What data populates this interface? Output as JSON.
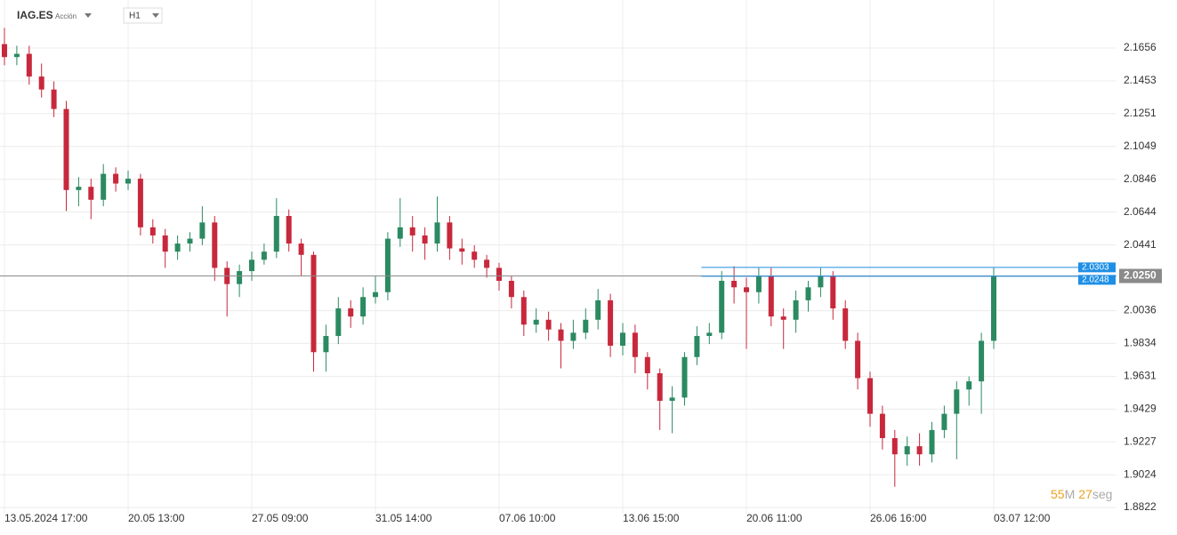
{
  "header": {
    "symbol": "IAG.ES",
    "kind": "Acción",
    "timeframe": "H1"
  },
  "chart_data": {
    "type": "candlestick",
    "categories": [
      "13.05.2024 17:00",
      null,
      null,
      null,
      null,
      null,
      null,
      null,
      null,
      null,
      "20.05 13:00",
      null,
      null,
      null,
      null,
      null,
      null,
      null,
      null,
      null,
      "27.05 09:00",
      null,
      null,
      null,
      null,
      null,
      null,
      null,
      null,
      null,
      "31.05 14:00",
      null,
      null,
      null,
      null,
      null,
      null,
      null,
      null,
      null,
      "07.06 10:00",
      null,
      null,
      null,
      null,
      null,
      null,
      null,
      null,
      null,
      "13.06 15:00",
      null,
      null,
      null,
      null,
      null,
      null,
      null,
      null,
      null,
      "20.06 11:00",
      null,
      null,
      null,
      null,
      null,
      null,
      null,
      null,
      null,
      "26.06 16:00",
      null,
      null,
      null,
      null,
      null,
      null,
      null,
      null,
      null,
      "03.07 12:00"
    ],
    "open": [
      2.168,
      2.16,
      2.162,
      2.148,
      2.14,
      2.128,
      2.078,
      2.08,
      2.072,
      2.088,
      2.082,
      2.085,
      2.055,
      2.05,
      2.04,
      2.045,
      2.048,
      2.058,
      2.03,
      2.02,
      2.028,
      2.035,
      2.04,
      2.062,
      2.045,
      2.038,
      1.978,
      1.988,
      2.005,
      2.0,
      2.012,
      2.015,
      2.048,
      2.055,
      2.05,
      2.045,
      2.058,
      2.042,
      2.04,
      2.035,
      2.03,
      2.022,
      2.012,
      1.995,
      1.998,
      1.992,
      1.985,
      1.99,
      1.998,
      2.01,
      1.982,
      1.99,
      1.975,
      1.965,
      1.948,
      1.95,
      1.975,
      1.988,
      1.99,
      2.022,
      2.018,
      2.015,
      2.025,
      2.0,
      1.998,
      2.01,
      2.018,
      2.025,
      2.005,
      1.985,
      1.962,
      1.94,
      1.925,
      1.915,
      1.92,
      1.915,
      1.93,
      1.94,
      1.955,
      1.96,
      1.985
    ],
    "high": [
      2.178,
      2.167,
      2.167,
      2.156,
      2.145,
      2.133,
      2.086,
      2.085,
      2.094,
      2.092,
      2.09,
      2.088,
      2.06,
      2.054,
      2.05,
      2.052,
      2.068,
      2.062,
      2.034,
      2.032,
      2.04,
      2.045,
      2.073,
      2.066,
      2.048,
      2.04,
      1.995,
      2.012,
      2.01,
      2.018,
      2.025,
      2.052,
      2.073,
      2.062,
      2.055,
      2.074,
      2.062,
      2.048,
      2.044,
      2.038,
      2.033,
      2.025,
      2.016,
      2.005,
      2.003,
      1.996,
      1.998,
      2.005,
      2.017,
      2.014,
      1.996,
      1.995,
      1.978,
      1.968,
      1.957,
      1.978,
      1.994,
      1.996,
      2.028,
      2.031,
      2.024,
      2.03,
      2.03,
      2.005,
      2.016,
      2.022,
      2.03,
      2.028,
      2.01,
      1.99,
      1.966,
      1.945,
      1.93,
      1.926,
      1.928,
      1.935,
      1.945,
      1.96,
      1.963,
      1.99,
      2.03
    ],
    "low": [
      2.155,
      2.155,
      2.143,
      2.135,
      2.123,
      2.065,
      2.068,
      2.06,
      2.068,
      2.077,
      2.078,
      2.05,
      2.045,
      2.03,
      2.035,
      2.04,
      2.044,
      2.022,
      2.0,
      2.012,
      2.022,
      2.032,
      2.036,
      2.04,
      2.025,
      1.966,
      1.966,
      1.983,
      1.993,
      1.995,
      2.008,
      2.01,
      2.043,
      2.04,
      2.035,
      2.04,
      2.035,
      2.032,
      2.03,
      2.024,
      2.016,
      2.005,
      1.988,
      1.99,
      1.985,
      1.968,
      1.98,
      1.986,
      1.992,
      1.975,
      1.976,
      1.965,
      1.955,
      1.93,
      1.928,
      1.945,
      1.97,
      1.983,
      1.986,
      2.008,
      1.98,
      2.008,
      1.994,
      1.98,
      1.99,
      2.003,
      2.012,
      1.998,
      1.98,
      1.955,
      1.932,
      1.918,
      1.895,
      1.908,
      1.908,
      1.91,
      1.925,
      1.912,
      1.945,
      1.94,
      1.98
    ],
    "close": [
      2.16,
      2.162,
      2.148,
      2.14,
      2.128,
      2.078,
      2.08,
      2.072,
      2.088,
      2.082,
      2.085,
      2.055,
      2.05,
      2.04,
      2.045,
      2.048,
      2.058,
      2.03,
      2.02,
      2.028,
      2.035,
      2.04,
      2.062,
      2.045,
      2.038,
      1.978,
      1.988,
      2.005,
      2.0,
      2.012,
      2.015,
      2.048,
      2.055,
      2.05,
      2.045,
      2.058,
      2.042,
      2.04,
      2.035,
      2.03,
      2.022,
      2.012,
      1.995,
      1.998,
      1.992,
      1.985,
      1.99,
      1.998,
      2.01,
      1.982,
      1.99,
      1.975,
      1.965,
      1.948,
      1.95,
      1.975,
      1.988,
      1.99,
      2.022,
      2.018,
      2.015,
      2.025,
      2.0,
      1.998,
      2.01,
      2.018,
      2.025,
      2.005,
      1.985,
      1.962,
      1.94,
      1.925,
      1.915,
      1.92,
      1.915,
      1.93,
      1.94,
      1.955,
      1.96,
      1.985,
      2.025
    ],
    "up_color": "#2b8a61",
    "down_color": "#c8283c",
    "ylim": [
      1.8784,
      2.1952
    ],
    "yticks": [
      1.8822,
      1.9024,
      1.9227,
      1.9429,
      1.9631,
      1.9834,
      2.0036,
      2.0441,
      2.0644,
      2.0846,
      2.1049,
      2.1251,
      2.1453,
      2.1656
    ],
    "grid": true,
    "levels": [
      {
        "value": 2.0303,
        "label": "2.0303",
        "color": "#1e8fe6"
      },
      {
        "value": 2.0248,
        "label": "2.0248",
        "color": "#1e8fe6"
      }
    ],
    "price": {
      "value": 2.025,
      "label": "2.0250",
      "color": "#8a8a8a"
    }
  },
  "timer": {
    "minutes": "55",
    "minutes_unit": "M",
    "seconds": "27",
    "seconds_unit": "seg"
  }
}
